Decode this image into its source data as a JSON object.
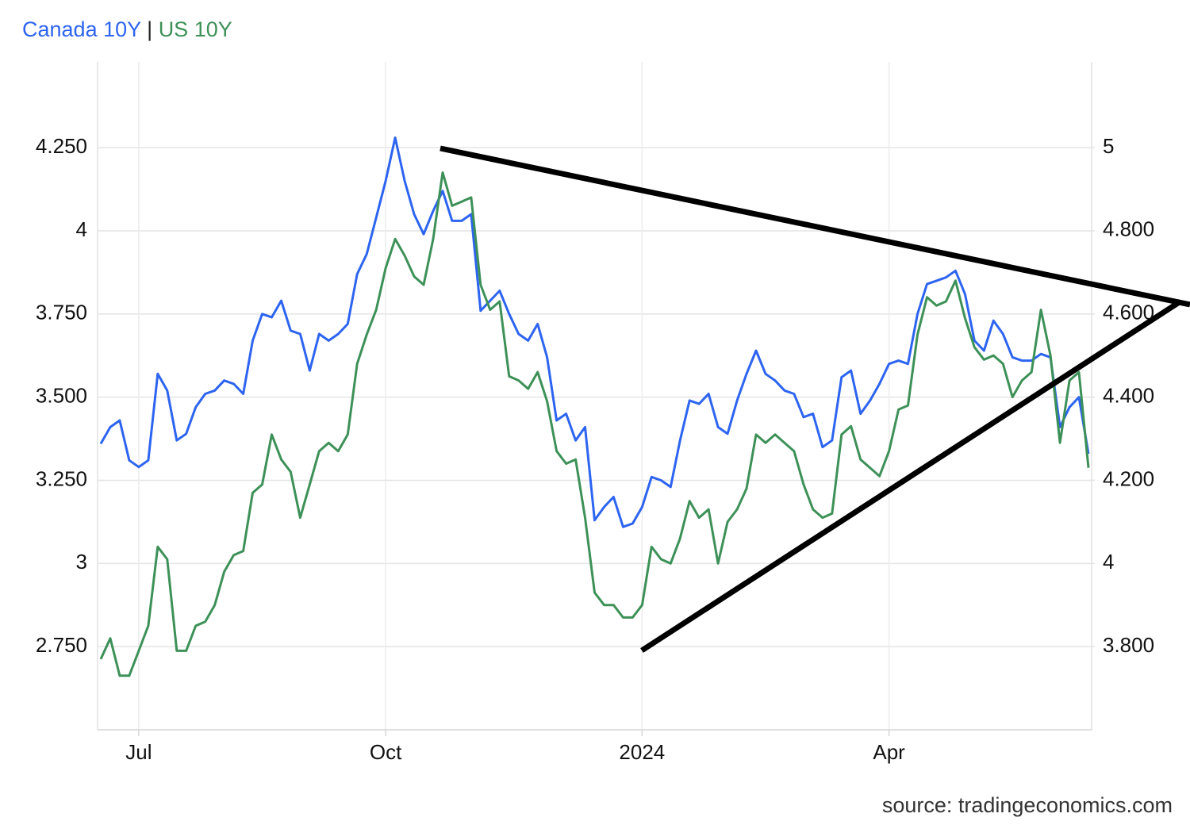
{
  "chart_data": {
    "type": "line",
    "legend_separator": "|",
    "source": "source: tradingeconomics.com",
    "categories": [
      null,
      null,
      null,
      null,
      "Jul",
      null,
      null,
      null,
      null,
      null,
      null,
      null,
      null,
      null,
      null,
      null,
      null,
      null,
      null,
      null,
      null,
      null,
      null,
      null,
      null,
      null,
      null,
      null,
      null,
      null,
      "Oct",
      null,
      null,
      null,
      null,
      null,
      null,
      null,
      null,
      null,
      null,
      null,
      null,
      null,
      null,
      null,
      null,
      null,
      null,
      null,
      null,
      null,
      null,
      null,
      null,
      null,
      null,
      "2024",
      null,
      null,
      null,
      null,
      null,
      null,
      null,
      null,
      null,
      null,
      null,
      null,
      null,
      null,
      null,
      null,
      null,
      null,
      null,
      null,
      null,
      null,
      null,
      null,
      null,
      "Apr",
      null,
      null,
      null,
      null,
      null,
      null,
      null,
      null,
      null,
      null,
      null,
      null,
      null,
      null,
      null,
      null,
      null,
      null,
      null,
      null,
      null
    ],
    "series": [
      {
        "name": "Canada 10Y",
        "color": "#2d64f0",
        "axis": "y",
        "values": [
          3.36,
          3.41,
          3.43,
          3.31,
          3.29,
          3.31,
          3.57,
          3.52,
          3.37,
          3.39,
          3.47,
          3.51,
          3.52,
          3.55,
          3.54,
          3.51,
          3.67,
          3.75,
          3.74,
          3.79,
          3.7,
          3.69,
          3.58,
          3.69,
          3.67,
          3.69,
          3.72,
          3.87,
          3.93,
          4.04,
          4.15,
          4.28,
          4.15,
          4.05,
          3.99,
          4.06,
          4.12,
          4.03,
          4.03,
          4.05,
          3.76,
          3.79,
          3.82,
          3.75,
          3.69,
          3.67,
          3.72,
          3.62,
          3.43,
          3.45,
          3.37,
          3.41,
          3.13,
          3.17,
          3.2,
          3.11,
          3.12,
          3.17,
          3.26,
          3.25,
          3.23,
          3.37,
          3.49,
          3.48,
          3.51,
          3.41,
          3.39,
          3.49,
          3.57,
          3.64,
          3.57,
          3.55,
          3.52,
          3.51,
          3.44,
          3.45,
          3.35,
          3.37,
          3.56,
          3.58,
          3.45,
          3.49,
          3.54,
          3.6,
          3.61,
          3.6,
          3.75,
          3.84,
          3.85,
          3.86,
          3.88,
          3.81,
          3.67,
          3.64,
          3.73,
          3.69,
          3.62,
          3.61,
          3.61,
          3.63,
          3.62,
          3.41,
          3.47,
          3.5,
          3.33
        ]
      },
      {
        "name": "US 10Y",
        "color": "#3d9158",
        "axis": "y2",
        "values": [
          3.77,
          3.82,
          3.73,
          3.73,
          3.79,
          3.85,
          4.04,
          4.01,
          3.79,
          3.79,
          3.85,
          3.86,
          3.9,
          3.98,
          4.02,
          4.03,
          4.17,
          4.19,
          4.31,
          4.25,
          4.22,
          4.11,
          4.19,
          4.27,
          4.29,
          4.27,
          4.31,
          4.48,
          4.55,
          4.61,
          4.71,
          4.78,
          4.74,
          4.69,
          4.67,
          4.78,
          4.94,
          4.86,
          4.87,
          4.88,
          4.67,
          4.61,
          4.63,
          4.45,
          4.44,
          4.42,
          4.46,
          4.39,
          4.27,
          4.24,
          4.25,
          4.11,
          3.93,
          3.9,
          3.9,
          3.87,
          3.87,
          3.9,
          4.04,
          4.01,
          4.0,
          4.06,
          4.15,
          4.11,
          4.13,
          4.0,
          4.1,
          4.13,
          4.18,
          4.31,
          4.29,
          4.31,
          4.29,
          4.27,
          4.19,
          4.13,
          4.11,
          4.12,
          4.31,
          4.33,
          4.25,
          4.23,
          4.21,
          4.27,
          4.37,
          4.38,
          4.55,
          4.64,
          4.62,
          4.63,
          4.68,
          4.59,
          4.52,
          4.49,
          4.5,
          4.48,
          4.4,
          4.44,
          4.46,
          4.61,
          4.5,
          4.29,
          4.44,
          4.46,
          4.23
        ]
      }
    ],
    "ylim": [
      2.5,
      4.508
    ],
    "yticks": [
      {
        "value": 2.75,
        "label": "2.750"
      },
      3,
      {
        "value": 3.25,
        "label": "3.250"
      },
      {
        "value": 3.5,
        "label": "3.500"
      },
      {
        "value": 3.75,
        "label": "3.750"
      },
      4,
      {
        "value": 4.25,
        "label": "4.250"
      }
    ],
    "y2lim": [
      3.6,
      5.206
    ],
    "y2ticks": [
      {
        "value": 3.8,
        "label": "3.800"
      },
      4,
      {
        "value": 4.2,
        "label": "4.200"
      },
      {
        "value": 4.4,
        "label": "4.400"
      },
      {
        "value": 4.6,
        "label": "4.600"
      },
      {
        "value": 4.8,
        "label": "4.800"
      },
      5
    ],
    "grid": true
  }
}
